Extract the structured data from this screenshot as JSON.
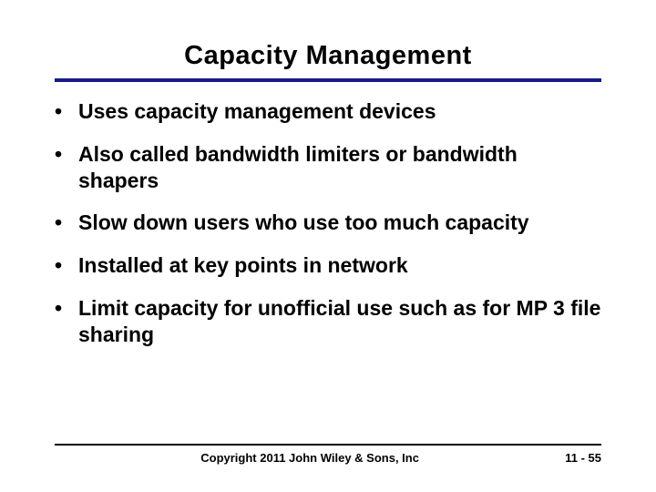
{
  "title": "Capacity Management",
  "bullets": [
    "Uses capacity management devices",
    "Also called bandwidth limiters or bandwidth shapers",
    "Slow down users who use too much capacity",
    "Installed at key points in network",
    "Limit capacity for unofficial use such as for MP 3 file sharing"
  ],
  "footer": {
    "copyright": "Copyright 2011 John Wiley & Sons, Inc",
    "page": "11  - 55"
  },
  "colors": {
    "title_rule": "#1a1a8a",
    "footer_rule": "#000000",
    "text": "#000000",
    "background": "#ffffff"
  },
  "typography": {
    "title_fontsize": 29,
    "title_weight": 900,
    "bullet_fontsize": 23,
    "bullet_weight": 700,
    "footer_fontsize": 13,
    "footer_weight": 700
  }
}
